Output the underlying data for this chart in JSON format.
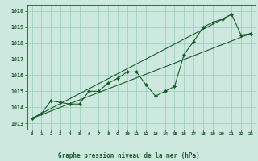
{
  "title": "Graphe pression niveau de la mer (hPa)",
  "xlabel_ticks": [
    0,
    1,
    2,
    3,
    4,
    5,
    6,
    7,
    8,
    9,
    10,
    11,
    12,
    13,
    14,
    15,
    16,
    17,
    18,
    19,
    20,
    21,
    22,
    23
  ],
  "yticks": [
    1013,
    1014,
    1015,
    1016,
    1017,
    1018,
    1019,
    1020
  ],
  "ylim": [
    1012.6,
    1020.4
  ],
  "xlim": [
    -0.5,
    23.5
  ],
  "bg_color": "#cce8df",
  "grid_color": "#99ccbb",
  "line_color": "#1a5c2a",
  "line1": {
    "x": [
      0,
      1,
      2,
      3,
      4,
      5,
      6,
      7,
      8,
      9,
      10,
      11,
      12,
      13,
      14,
      15,
      16,
      17,
      18,
      19,
      20,
      21,
      22,
      23
    ],
    "y": [
      1013.3,
      1013.6,
      1014.4,
      1014.3,
      1014.2,
      1014.2,
      1015.0,
      1015.0,
      1015.5,
      1015.8,
      1016.2,
      1016.2,
      1015.4,
      1014.7,
      1015.0,
      1015.3,
      1017.3,
      1018.1,
      1019.0,
      1019.3,
      1019.5,
      1019.8,
      1018.5,
      1018.6
    ]
  },
  "line2": {
    "x": [
      0,
      23
    ],
    "y": [
      1013.3,
      1018.6
    ]
  },
  "line3": {
    "x": [
      0,
      21
    ],
    "y": [
      1013.3,
      1019.8
    ]
  }
}
